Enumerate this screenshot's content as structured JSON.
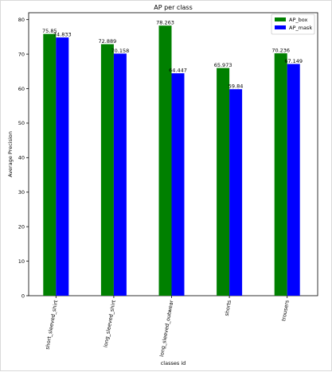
{
  "chart_data": {
    "type": "bar",
    "title": "AP per class",
    "xlabel": "classes id",
    "ylabel": "Average Precision",
    "categories": [
      "short_sleeved_shirt",
      "long_sleeved_shirt",
      "long_sleeved_outwear",
      "shorts",
      "trousers"
    ],
    "series": [
      {
        "name": "AP_box",
        "color": "#008000",
        "values": [
          75.85,
          72.889,
          78.263,
          65.973,
          70.236
        ],
        "labels": [
          "75.85",
          "72.889",
          "78.263",
          "65.973",
          "70.236"
        ]
      },
      {
        "name": "AP_mask",
        "color": "#0000ff",
        "values": [
          74.833,
          70.158,
          64.447,
          59.84,
          67.149
        ],
        "labels": [
          "74.833",
          "70.158",
          "64.447",
          "59.84",
          "67.149"
        ]
      }
    ],
    "ylim": [
      0,
      82
    ],
    "yticks": [
      0,
      10,
      20,
      30,
      40,
      50,
      60,
      70,
      80
    ],
    "grid": false,
    "legend": "top-right"
  }
}
